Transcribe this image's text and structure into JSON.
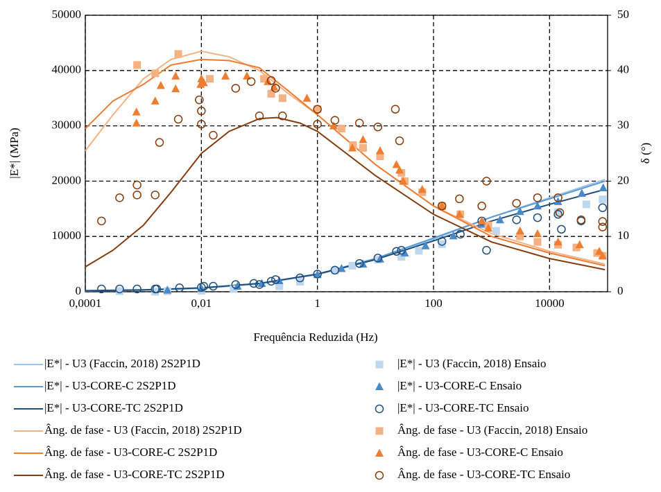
{
  "chart_data": {
    "type": "scatter",
    "x_label": "Frequência Reduzida (Hz)",
    "y_label": "|E*| (MPa)",
    "y2_label": "δ (°)",
    "x_log": true,
    "grid": true,
    "grid_style": "dashed",
    "xlim": [
      0.0001,
      100000
    ],
    "xticks": [
      {
        "value": 0.0001,
        "label": "0,0001"
      },
      {
        "value": 0.01,
        "label": "0,01"
      },
      1,
      100,
      10000
    ],
    "ylim": [
      0,
      50000
    ],
    "yticks": [
      0,
      10000,
      20000,
      30000,
      40000,
      50000
    ],
    "y2lim": [
      0,
      50
    ],
    "y2ticks": [
      0,
      10,
      20,
      30,
      40,
      50
    ],
    "legend": "bottom",
    "series": [
      {
        "name": "|E*| - U3 (Faccin, 2018) 2S2P1D",
        "mode": "line",
        "color": "#9dc3e6",
        "x": [
          0.0001,
          0.001,
          0.01,
          0.1,
          1,
          10,
          100,
          1000,
          10000,
          90000
        ],
        "values": [
          150,
          300,
          600,
          1400,
          3100,
          5800,
          9500,
          13500,
          17000,
          20300
        ]
      },
      {
        "name": "|E*| - U3-CORE-C 2S2P1D",
        "mode": "line",
        "color": "#5b9bd5",
        "x": [
          0.0001,
          0.001,
          0.01,
          0.1,
          1,
          10,
          100,
          1000,
          10000,
          90000
        ],
        "values": [
          150,
          300,
          650,
          1500,
          3200,
          6000,
          9700,
          13500,
          16800,
          20000
        ]
      },
      {
        "name": "|E*| - U3-CORE-TC 2S2P1D",
        "mode": "line",
        "color": "#1f4e79",
        "x": [
          0.0001,
          0.001,
          0.01,
          0.1,
          1,
          10,
          100,
          1000,
          10000,
          90000
        ],
        "values": [
          200,
          350,
          700,
          1500,
          3200,
          5800,
          9200,
          12800,
          15800,
          18500
        ]
      },
      {
        "name": "Âng. de fase - U3 (Faccin, 2018) 2S2P1D",
        "mode": "line",
        "color": "#f4b183",
        "axis": "y2",
        "x": [
          0.0001,
          0.0003,
          0.001,
          0.003,
          0.01,
          0.03,
          0.1,
          0.3,
          1,
          10,
          100,
          1000,
          10000,
          90000
        ],
        "values": [
          25.5,
          32,
          38.5,
          42,
          43.5,
          42.5,
          40,
          36,
          32,
          23,
          15.5,
          10.5,
          7.3,
          5
        ]
      },
      {
        "name": "Âng. de fase - U3-CORE-C 2S2P1D",
        "mode": "line",
        "color": "#ed7d31",
        "axis": "y2",
        "x": [
          0.0001,
          0.0003,
          0.001,
          0.003,
          0.01,
          0.03,
          0.1,
          0.3,
          1,
          10,
          100,
          1000,
          10000,
          90000
        ],
        "values": [
          29.5,
          34.5,
          37.5,
          41,
          42,
          41.8,
          40.5,
          36.5,
          32,
          23,
          15.5,
          10,
          7,
          4.7
        ]
      },
      {
        "name": "Âng. de fase - U3-CORE-TC 2S2P1D",
        "mode": "line",
        "color": "#843c0c",
        "axis": "y2",
        "x": [
          0.0001,
          0.0003,
          0.001,
          0.003,
          0.01,
          0.03,
          0.1,
          0.2,
          0.5,
          1,
          10,
          100,
          1000,
          10000,
          90000
        ],
        "values": [
          4.5,
          7.5,
          12,
          18,
          25,
          29,
          31.3,
          31.5,
          30.5,
          29,
          21,
          14,
          9,
          6,
          4
        ]
      },
      {
        "name": "|E*| - U3 (Faccin, 2018) Ensaio",
        "mode": "square",
        "color": "#bdd7ee",
        "x": [
          0.00039,
          0.0016,
          0.0026,
          0.01,
          0.036,
          0.22,
          0.5,
          2.0,
          4.0,
          11,
          28,
          56,
          140,
          1200,
          14000,
          43000,
          82000
        ],
        "values": [
          100,
          0,
          100,
          200,
          500,
          1000,
          1800,
          3800,
          4700,
          5800,
          6300,
          7400,
          8600,
          11000,
          14400,
          15800,
          16700
        ]
      },
      {
        "name": "|E*| - U3-CORE-C  Ensaio",
        "mode": "triangle",
        "color": "#4a89c8",
        "x": [
          0.0026,
          0.01,
          0.042,
          0.11,
          0.22,
          1.0,
          2.6,
          6.1,
          12,
          32,
          73,
          220,
          680,
          1400,
          3100,
          6200,
          14000,
          36000,
          84000
        ],
        "values": [
          300,
          600,
          1000,
          1500,
          2000,
          3100,
          4200,
          5000,
          5900,
          7000,
          8300,
          10100,
          12200,
          13000,
          14500,
          15500,
          16300,
          17800,
          18800
        ]
      },
      {
        "name": "|E*| - U3-CORE-TC  Ensaio",
        "mode": "circle",
        "color": "#1f4e79",
        "x": [
          0.00019,
          0.00039,
          0.00078,
          0.0016,
          0.0017,
          0.0042,
          0.01,
          0.011,
          0.016,
          0.039,
          0.08,
          0.1,
          0.16,
          0.19,
          0.5,
          1.0,
          2.0,
          5.3,
          11,
          23,
          28,
          140,
          290,
          680,
          820,
          2700,
          6200,
          14000,
          16000,
          35000,
          82000
        ],
        "values": [
          500,
          500,
          500,
          500,
          500,
          700,
          800,
          1000,
          1000,
          1300,
          1500,
          1300,
          1900,
          2200,
          2500,
          3200,
          3900,
          5100,
          6100,
          7300,
          7500,
          9100,
          10400,
          12800,
          7500,
          13000,
          13400,
          14000,
          11300,
          12800,
          15200
        ]
      },
      {
        "name": "Âng. de fase - U3 (Faccin, 2018) Ensaio",
        "mode": "square",
        "color": "#f4b183",
        "axis": "y2",
        "x": [
          0.00078,
          0.0016,
          0.004,
          0.014,
          0.12,
          0.16,
          0.25,
          1.0,
          2.6,
          4.1,
          6.1,
          12,
          28,
          32,
          64,
          140,
          290,
          880,
          3100,
          6200,
          14000,
          29000,
          66000,
          82000
        ],
        "values": [
          41,
          39.5,
          43,
          38.5,
          38.5,
          35.8,
          35,
          33,
          29.5,
          26.5,
          26,
          24.5,
          21.5,
          20,
          18,
          15.5,
          14,
          12,
          10,
          9,
          8.5,
          8,
          7,
          6.5
        ]
      },
      {
        "name": "Âng. de fase - U3-CORE-C Ensaio",
        "mode": "triangle",
        "color": "#ed7d31",
        "axis": "y2",
        "x": [
          0.00076,
          0.00076,
          0.0016,
          0.002,
          0.0036,
          0.0036,
          0.0097,
          0.01,
          0.011,
          0.026,
          0.061,
          0.14,
          0.18,
          0.66,
          1.9,
          4.0,
          6.1,
          12,
          23,
          26,
          30,
          64,
          140,
          280,
          680,
          880,
          3100,
          6200,
          14000,
          33000,
          72000,
          82000
        ],
        "values": [
          32.5,
          30.5,
          34.5,
          37.3,
          36.7,
          39,
          37.5,
          38.5,
          37.8,
          39,
          39,
          38,
          37,
          35,
          30,
          26,
          27.5,
          25.5,
          23,
          22,
          20,
          18.5,
          15.5,
          14,
          12.8,
          11.5,
          11,
          10.5,
          9,
          8.5,
          7.3,
          6.5
        ]
      },
      {
        "name": "Âng. de fase - U3-CORE-TC Ensaio",
        "mode": "circle",
        "color": "#843c0c",
        "axis": "y2",
        "x": [
          0.00019,
          0.00039,
          0.00078,
          0.00078,
          0.0016,
          0.0019,
          0.004,
          0.0092,
          0.01,
          0.01,
          0.016,
          0.039,
          0.072,
          0.1,
          0.16,
          0.19,
          0.25,
          1.0,
          1.0,
          2.0,
          5.3,
          11,
          22,
          26,
          140,
          280,
          680,
          820,
          2700,
          6200,
          14000,
          15000,
          35000,
          82000,
          82000
        ],
        "values": [
          12.8,
          17,
          17.5,
          19.3,
          17.5,
          27,
          31.2,
          34.7,
          32.7,
          30.3,
          28.3,
          36.8,
          38,
          31.8,
          38.2,
          36.8,
          31.8,
          33,
          30.3,
          31,
          30.5,
          29.8,
          33,
          27.3,
          15.5,
          16.8,
          15.5,
          20,
          16,
          17,
          17,
          14.3,
          13,
          11.7,
          12.7
        ]
      }
    ]
  }
}
